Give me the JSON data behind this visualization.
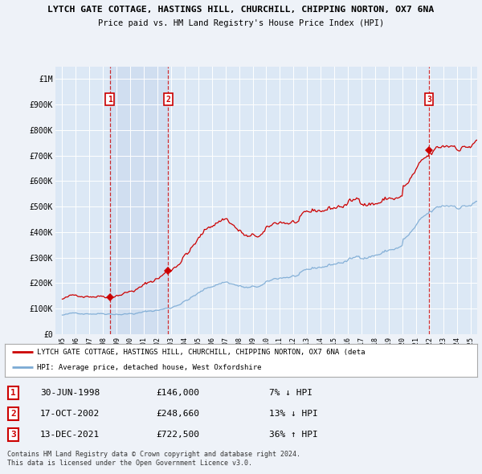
{
  "title_line1": "LYTCH GATE COTTAGE, HASTINGS HILL, CHURCHILL, CHIPPING NORTON, OX7 6NA",
  "title_line2": "Price paid vs. HM Land Registry's House Price Index (HPI)",
  "background_color": "#eef2f8",
  "plot_bg_color": "#dce8f5",
  "shade_bg_color": "#c8d8ee",
  "ylim": [
    0,
    1050000
  ],
  "yticks": [
    0,
    100000,
    200000,
    300000,
    400000,
    500000,
    600000,
    700000,
    800000,
    900000,
    1000000
  ],
  "ytick_labels": [
    "£0",
    "£100K",
    "£200K",
    "£300K",
    "£400K",
    "£500K",
    "£600K",
    "£700K",
    "£800K",
    "£900K",
    "£1M"
  ],
  "hpi_color": "#7baad4",
  "price_color": "#cc0000",
  "sale1_date": 1998.5,
  "sale1_price": 146000,
  "sale2_date": 2002.79,
  "sale2_price": 248660,
  "sale3_date": 2021.95,
  "sale3_price": 722500,
  "legend_label_price": "LYTCH GATE COTTAGE, HASTINGS HILL, CHURCHILL, CHIPPING NORTON, OX7 6NA (deta",
  "legend_label_hpi": "HPI: Average price, detached house, West Oxfordshire",
  "footer1": "Contains HM Land Registry data © Crown copyright and database right 2024.",
  "footer2": "This data is licensed under the Open Government Licence v3.0.",
  "table_rows": [
    {
      "num": "1",
      "date": "30-JUN-1998",
      "price": "£146,000",
      "hpi": "7% ↓ HPI"
    },
    {
      "num": "2",
      "date": "17-OCT-2002",
      "price": "£248,660",
      "hpi": "13% ↓ HPI"
    },
    {
      "num": "3",
      "date": "13-DEC-2021",
      "price": "£722,500",
      "hpi": "36% ↑ HPI"
    }
  ],
  "xmin": 1994.5,
  "xmax": 2025.5,
  "xtick_years": [
    1995,
    1996,
    1997,
    1998,
    1999,
    2000,
    2001,
    2002,
    2003,
    2004,
    2005,
    2006,
    2007,
    2008,
    2009,
    2010,
    2011,
    2012,
    2013,
    2014,
    2015,
    2016,
    2017,
    2018,
    2019,
    2020,
    2021,
    2022,
    2023,
    2024,
    2025
  ]
}
